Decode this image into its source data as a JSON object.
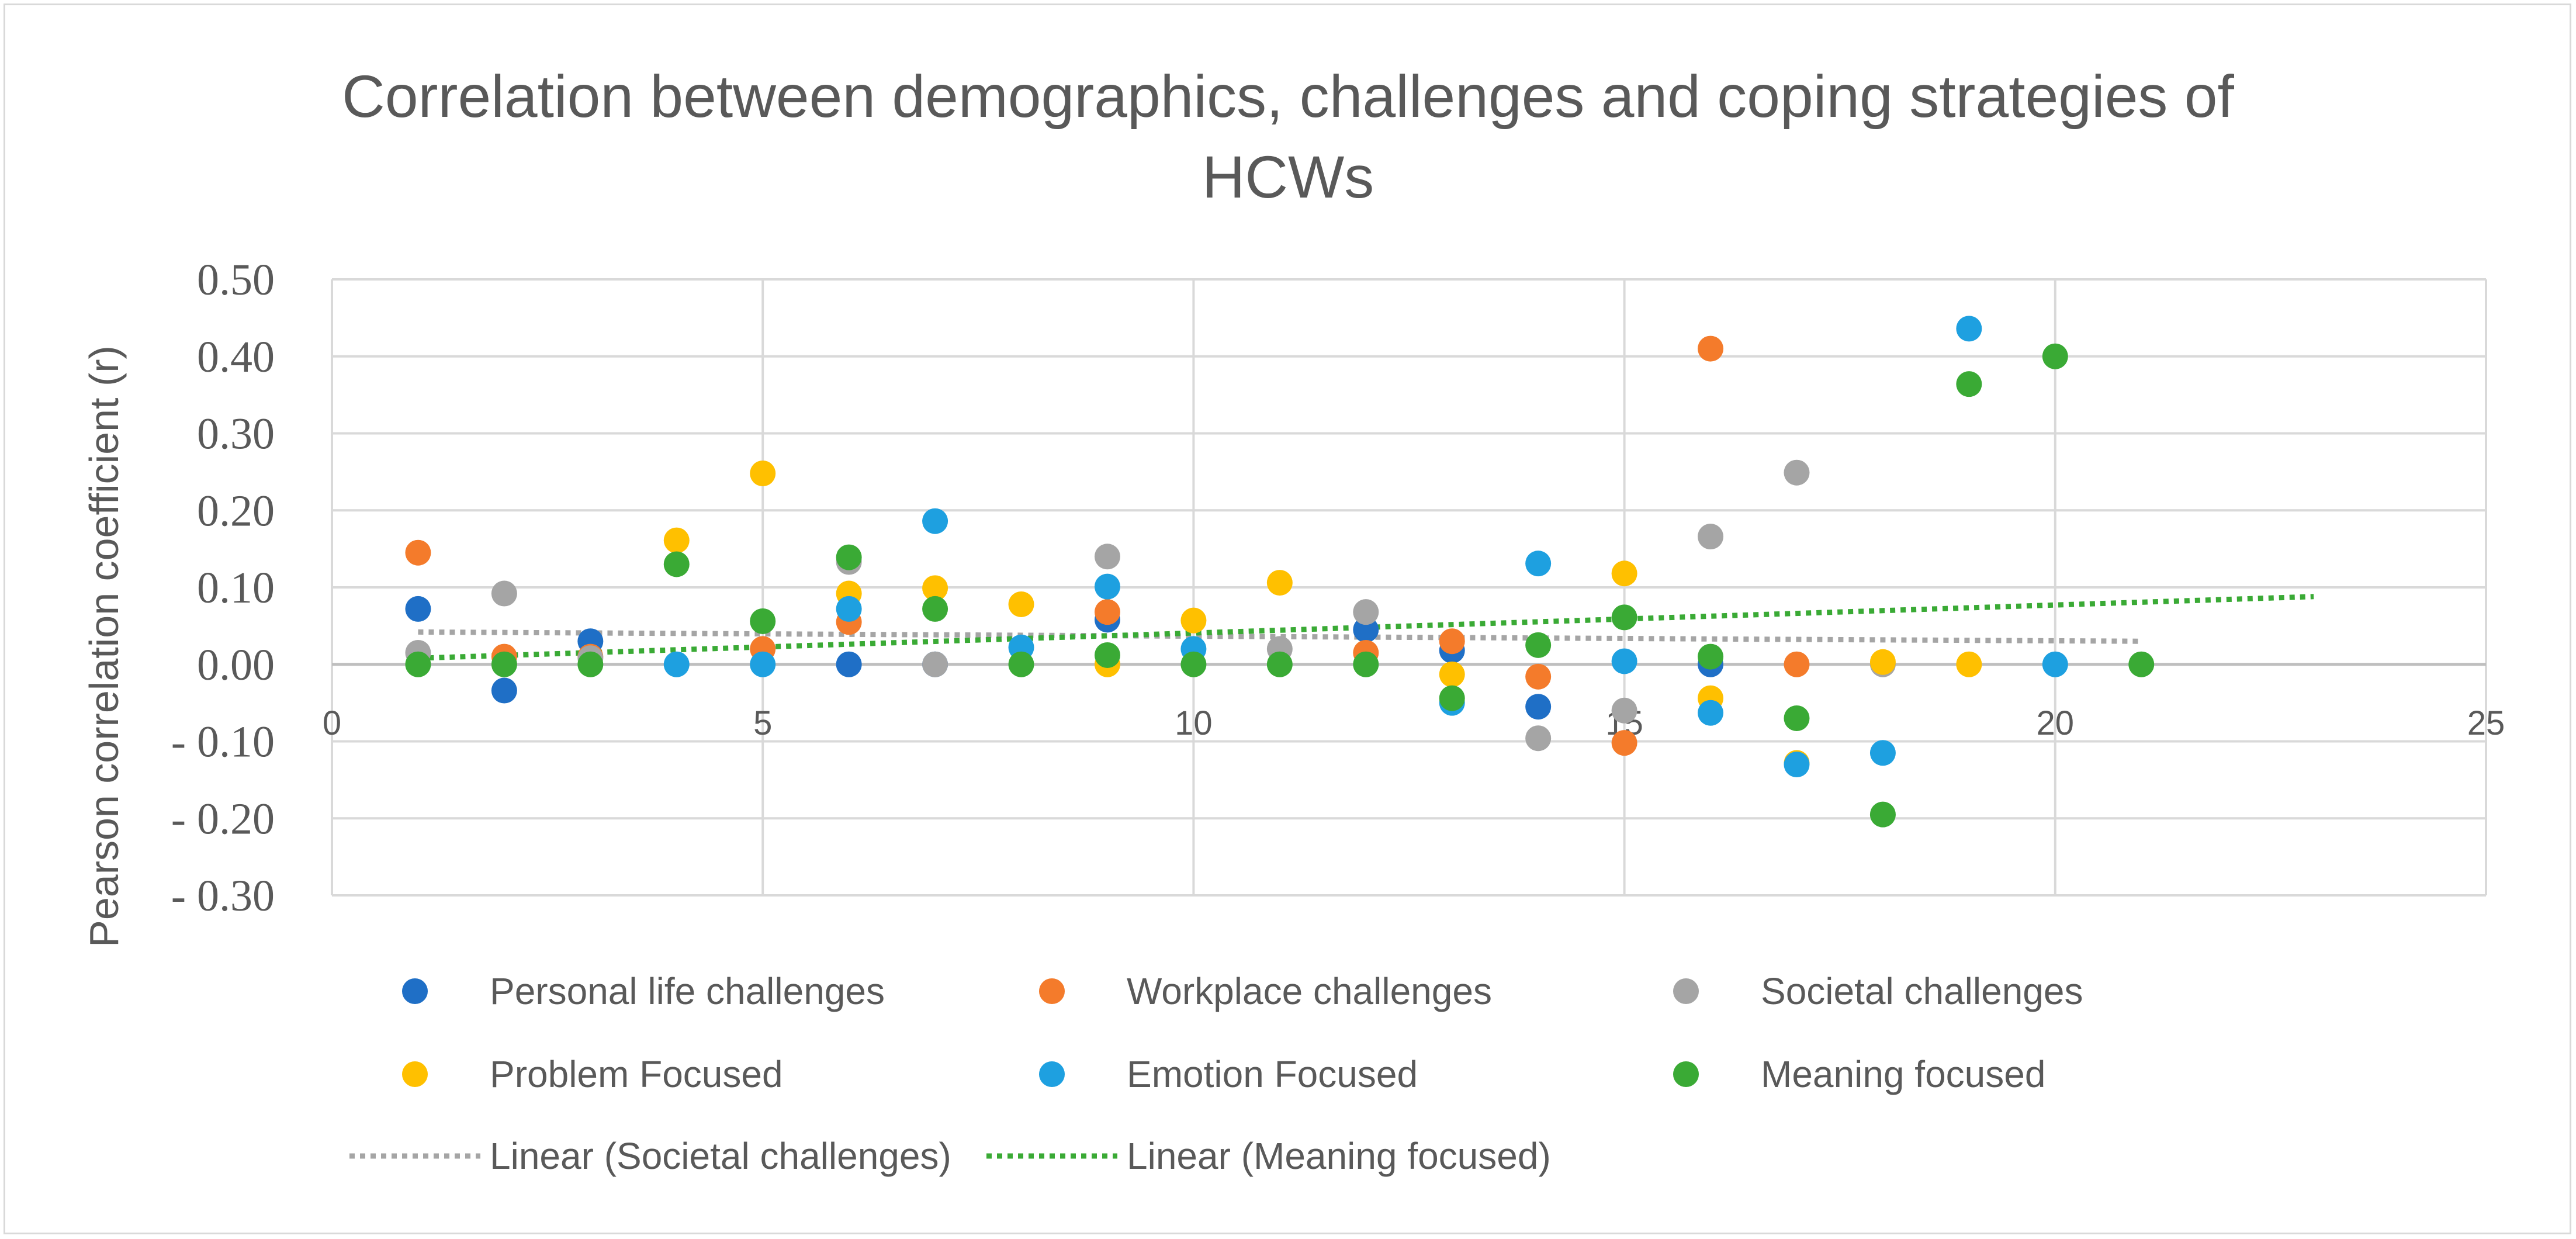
{
  "chart_data": {
    "type": "scatter",
    "title_lines": [
      "Correlation between demographics, challenges and coping strategies of",
      "HCWs"
    ],
    "xlabel": "",
    "ylabel": "Pearson correlation coefficient (r)",
    "xlim": [
      0,
      25
    ],
    "ylim": [
      -0.3,
      0.5
    ],
    "x_ticks": [
      0,
      5,
      10,
      15,
      20,
      25
    ],
    "x_tick_labels": [
      "0",
      "5",
      "10",
      "15",
      "20",
      "25"
    ],
    "y_ticks": [
      0.5,
      0.4,
      0.3,
      0.2,
      0.1,
      0.0,
      -0.1,
      -0.2,
      -0.3
    ],
    "y_tick_labels": [
      "0.50",
      "0.40",
      "0.30",
      "0.20",
      "0.10",
      "0.00",
      "- 0.10",
      "- 0.20",
      "- 0.30"
    ],
    "grid": true,
    "legend_position": "bottom",
    "series": [
      {
        "name": "Personal life challenges",
        "color": "#1f6fc6",
        "points": [
          [
            1,
            0.072
          ],
          [
            2,
            -0.034
          ],
          [
            3,
            0.03
          ],
          [
            6,
            0.0
          ],
          [
            7,
            0.0
          ],
          [
            9,
            0.058
          ],
          [
            12,
            0.045
          ],
          [
            13,
            0.018
          ],
          [
            14,
            -0.055
          ],
          [
            16,
            0.0
          ]
        ]
      },
      {
        "name": "Workplace challenges",
        "color": "#f47b2b",
        "points": [
          [
            1,
            0.145
          ],
          [
            2,
            0.01
          ],
          [
            3,
            0.01
          ],
          [
            5,
            0.02
          ],
          [
            6,
            0.055
          ],
          [
            9,
            0.068
          ],
          [
            12,
            0.015
          ],
          [
            13,
            0.03
          ],
          [
            14,
            -0.016
          ],
          [
            15,
            -0.102
          ],
          [
            16,
            0.41
          ],
          [
            17,
            0.0
          ]
        ]
      },
      {
        "name": "Societal challenges",
        "color": "#a5a5a5",
        "points": [
          [
            1,
            0.015
          ],
          [
            2,
            0.092
          ],
          [
            3,
            0.008
          ],
          [
            6,
            0.133
          ],
          [
            7,
            0.0
          ],
          [
            9,
            0.14
          ],
          [
            11,
            0.02
          ],
          [
            12,
            0.068
          ],
          [
            14,
            -0.096
          ],
          [
            15,
            -0.06
          ],
          [
            16,
            0.166
          ],
          [
            17,
            0.249
          ],
          [
            18,
            0.0
          ]
        ]
      },
      {
        "name": "Problem Focused",
        "color": "#ffc000",
        "points": [
          [
            4,
            0.161
          ],
          [
            5,
            0.248
          ],
          [
            6,
            0.092
          ],
          [
            7,
            0.099
          ],
          [
            8,
            0.078
          ],
          [
            9,
            0.0
          ],
          [
            10,
            0.057
          ],
          [
            11,
            0.106
          ],
          [
            13,
            -0.013
          ],
          [
            15,
            0.118
          ],
          [
            16,
            -0.044
          ],
          [
            17,
            -0.128
          ],
          [
            18,
            0.003
          ],
          [
            19,
            0.0
          ]
        ]
      },
      {
        "name": "Emotion Focused",
        "color": "#1ea0e0",
        "points": [
          [
            4,
            0.0
          ],
          [
            5,
            0.0
          ],
          [
            6,
            0.072
          ],
          [
            7,
            0.186
          ],
          [
            8,
            0.022
          ],
          [
            9,
            0.101
          ],
          [
            10,
            0.02
          ],
          [
            13,
            -0.05
          ],
          [
            14,
            0.131
          ],
          [
            15,
            0.004
          ],
          [
            16,
            -0.063
          ],
          [
            17,
            -0.13
          ],
          [
            18,
            -0.115
          ],
          [
            19,
            0.436
          ],
          [
            20,
            0.0
          ]
        ]
      },
      {
        "name": "Meaning focused",
        "color": "#3aaa35",
        "points": [
          [
            1,
            0.0
          ],
          [
            2,
            0.0
          ],
          [
            3,
            0.0
          ],
          [
            4,
            0.13
          ],
          [
            5,
            0.056
          ],
          [
            6,
            0.139
          ],
          [
            7,
            0.072
          ],
          [
            8,
            0.0
          ],
          [
            9,
            0.012
          ],
          [
            10,
            0.0
          ],
          [
            11,
            0.0
          ],
          [
            12,
            0.0
          ],
          [
            13,
            -0.044
          ],
          [
            14,
            0.025
          ],
          [
            15,
            0.061
          ],
          [
            16,
            0.01
          ],
          [
            17,
            -0.07
          ],
          [
            18,
            -0.195
          ],
          [
            19,
            0.364
          ],
          [
            20,
            0.4
          ],
          [
            21,
            0.0
          ]
        ]
      }
    ],
    "trendlines": [
      {
        "name": "Linear (Societal challenges)",
        "color": "#a5a5a5",
        "x": [
          1,
          21
        ],
        "y": [
          0.042,
          0.03
        ]
      },
      {
        "name": "Linear (Meaning focused)",
        "color": "#3aaa35",
        "x": [
          1,
          23
        ],
        "y": [
          0.008,
          0.088
        ]
      }
    ]
  }
}
